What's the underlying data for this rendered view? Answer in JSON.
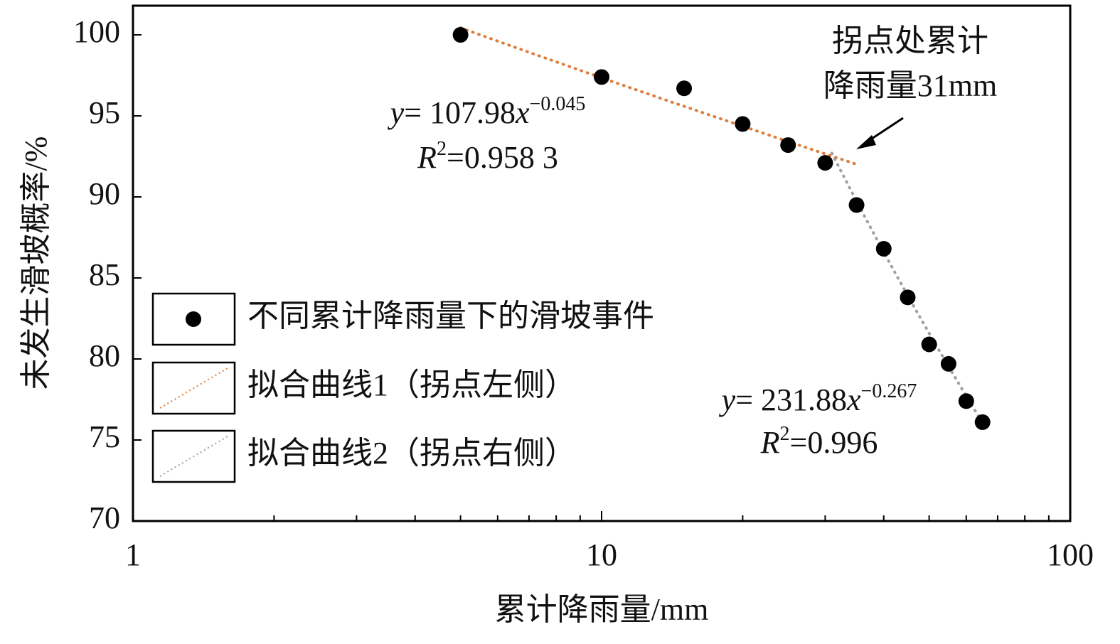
{
  "chart_data": {
    "type": "scatter",
    "x_label": "累计降雨量/mm",
    "y_label": "未发生滑坡概率/%",
    "xlim": [
      1,
      100
    ],
    "xticks": [
      1,
      10,
      100
    ],
    "x_log": true,
    "ylim": [
      70,
      101.8
    ],
    "yticks": [
      70,
      75,
      80,
      85,
      90,
      95,
      100
    ],
    "series": [
      {
        "name": "不同累计降雨量下的滑坡事件",
        "color": "#000000",
        "x": [
          5,
          10,
          15,
          20,
          25,
          30,
          35,
          40,
          45,
          50,
          55,
          60,
          65
        ],
        "values": [
          100,
          97.4,
          96.7,
          94.5,
          93.2,
          92.1,
          89.5,
          86.8,
          83.8,
          80.9,
          79.7,
          77.4,
          76.1
        ]
      }
    ],
    "fits": [
      {
        "name": "拟合曲线1（拐点左侧）",
        "color": "#e07b39",
        "a": 107.98,
        "b": -0.045,
        "x_range": [
          5,
          35
        ],
        "equation": [
          "y",
          "= 107.98",
          "x",
          "−0.045"
        ],
        "r2": [
          "R",
          "2",
          "=0.958 3"
        ]
      },
      {
        "name": "拟合曲线2（拐点右侧）",
        "color": "#a0a0a0",
        "a": 231.88,
        "b": -0.267,
        "x_range": [
          31,
          65
        ],
        "equation": [
          "y",
          "= 231.88",
          "x",
          "−0.267"
        ],
        "r2": [
          "R",
          "2",
          "=0.996"
        ]
      }
    ],
    "annotation": [
      "拐点处累计",
      "降雨量31mm"
    ]
  }
}
